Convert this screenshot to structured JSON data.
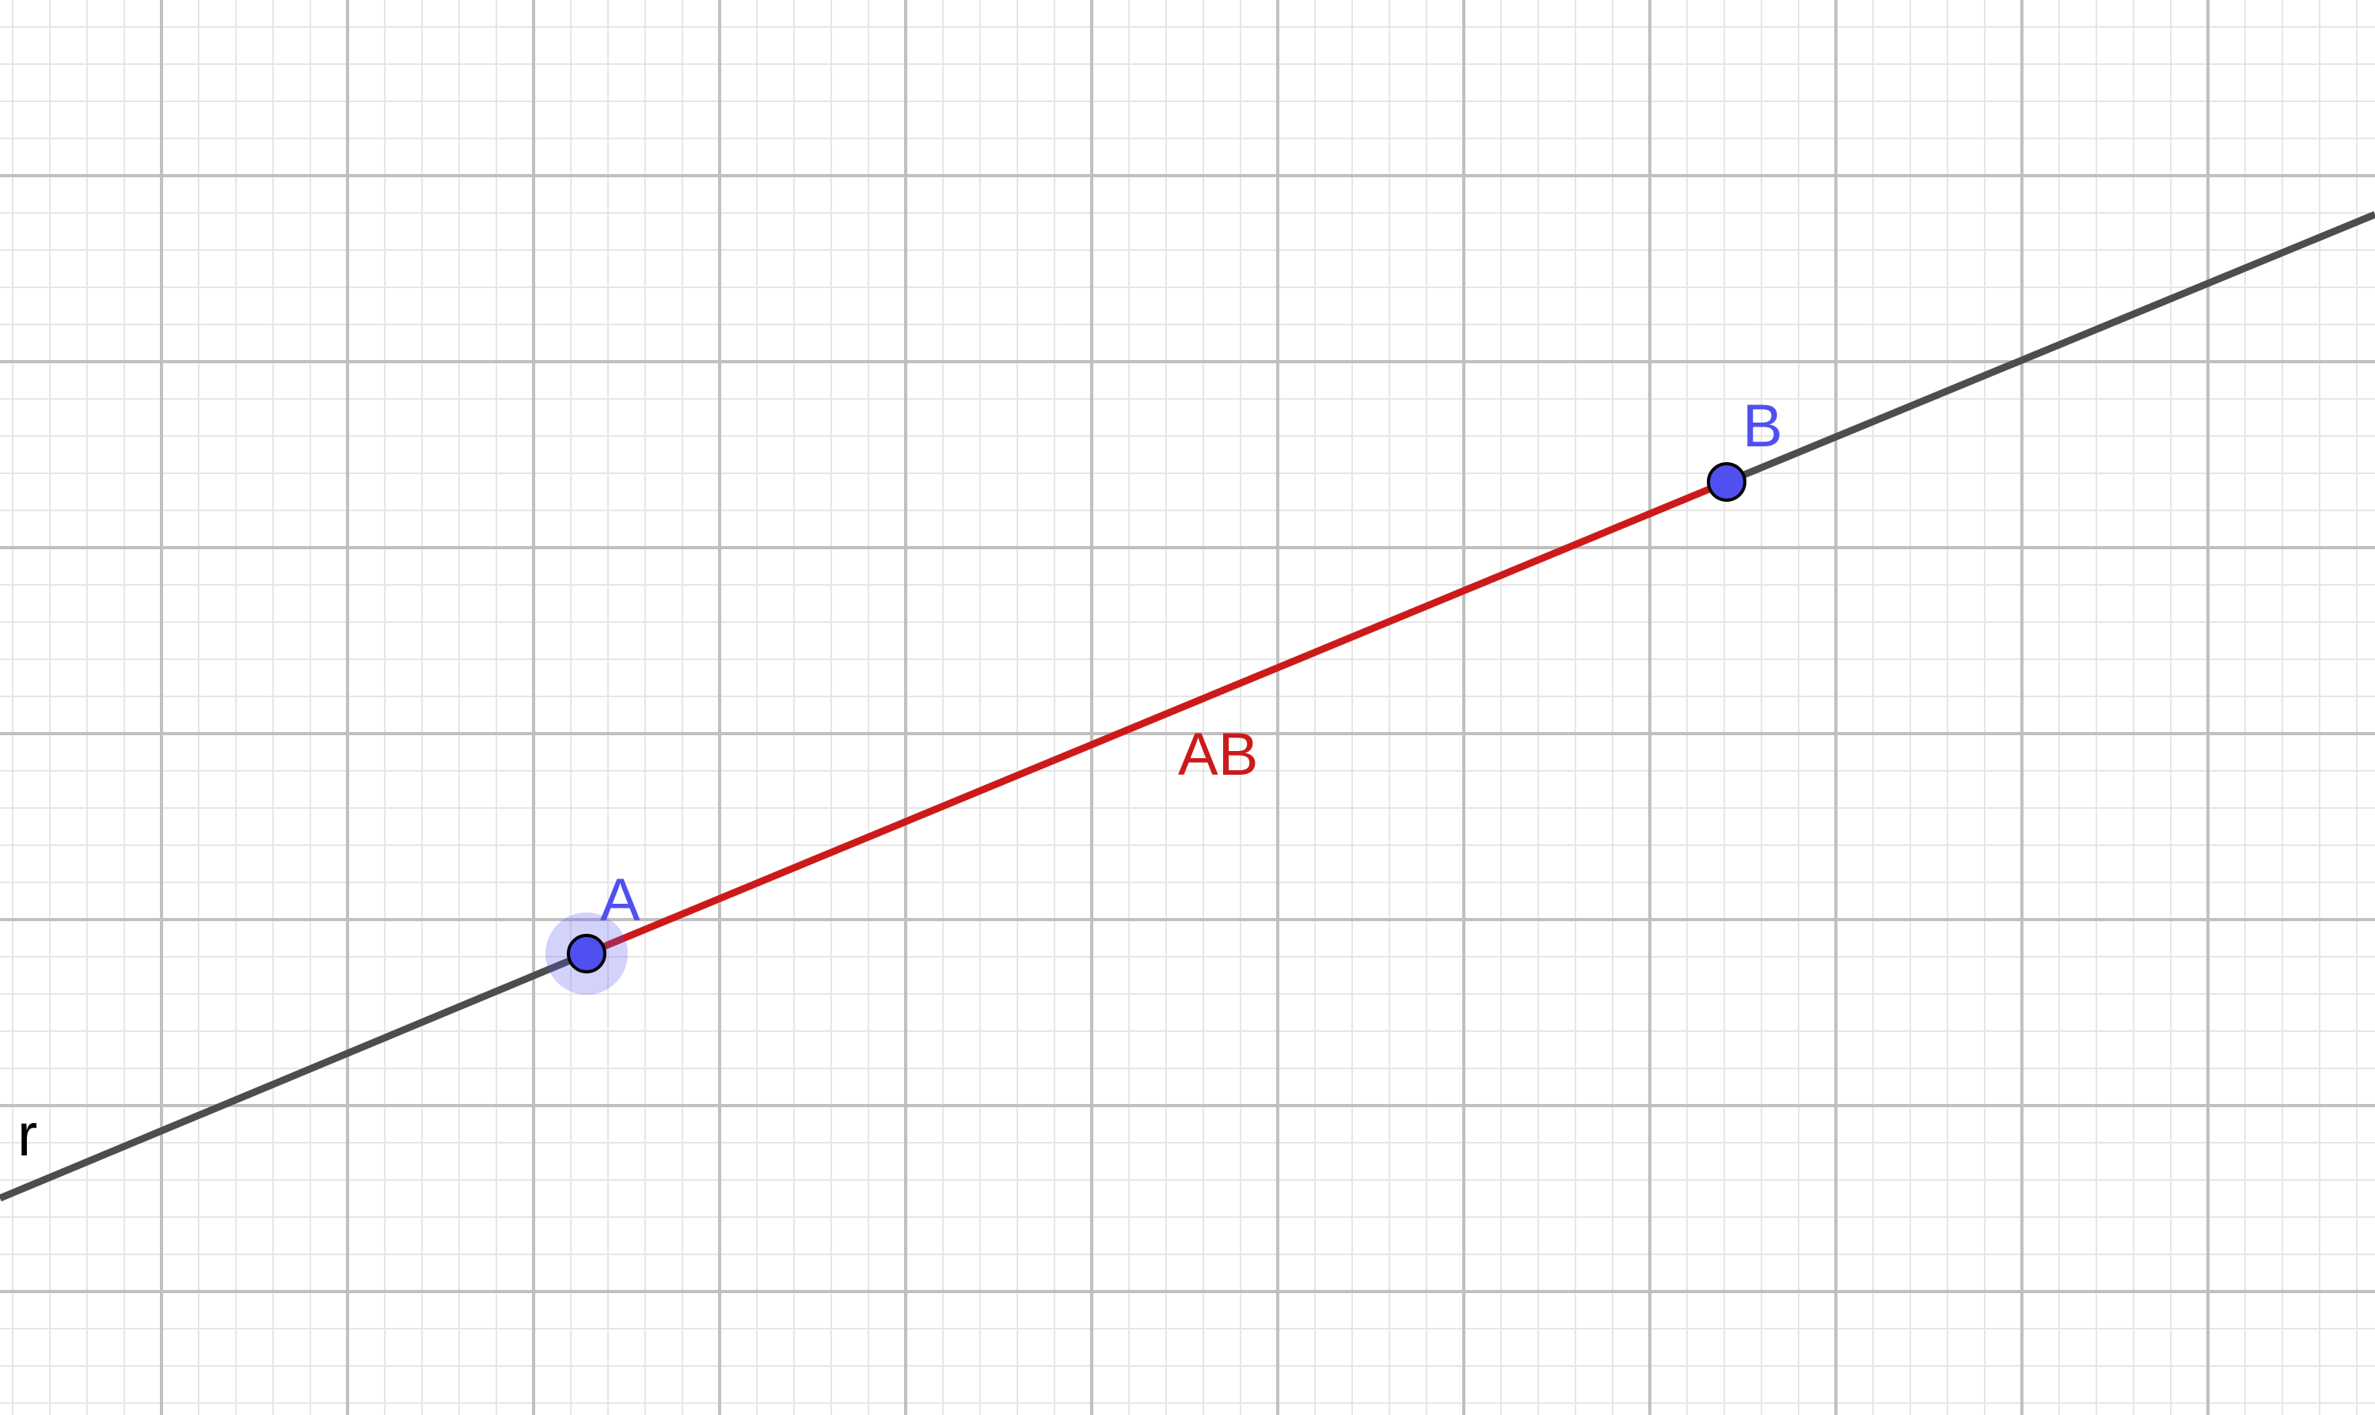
{
  "line": {
    "label": "r",
    "color": "#4d4d4d"
  },
  "segment": {
    "label": "AB",
    "color": "#cc1a1a"
  },
  "points": [
    {
      "label": "A",
      "color": "#5050f0",
      "selected": true
    },
    {
      "label": "B",
      "color": "#5050f0",
      "selected": false
    }
  ],
  "grid": {
    "visible": true,
    "major_color": "#c0c0c0",
    "minor_color": "#e6e6e6",
    "minor_subdivisions": 5
  }
}
